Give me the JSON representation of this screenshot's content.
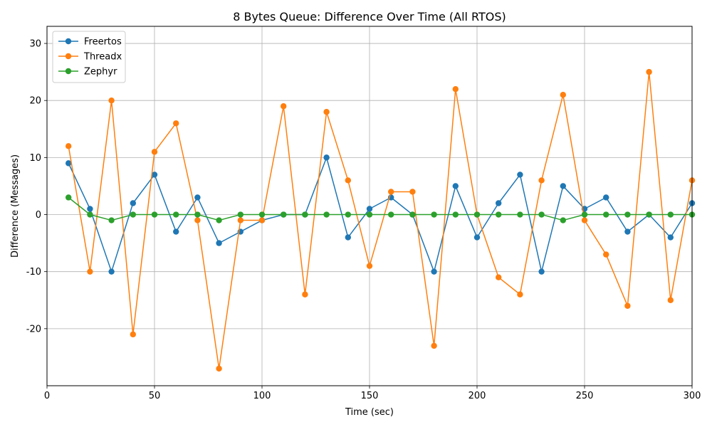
{
  "chart_data": {
    "type": "line",
    "title": "8 Bytes Queue: Difference Over Time (All RTOS)",
    "xlabel": "Time (sec)",
    "ylabel": "Difference (Messages)",
    "xlim": [
      0,
      300
    ],
    "ylim": [
      -30,
      33
    ],
    "xticks": [
      0,
      50,
      100,
      150,
      200,
      250,
      300
    ],
    "yticks": [
      -20,
      -10,
      0,
      10,
      20,
      30
    ],
    "grid": true,
    "legend_position": "top-left",
    "x": [
      10,
      20,
      30,
      40,
      50,
      60,
      70,
      80,
      90,
      100,
      110,
      120,
      130,
      140,
      150,
      160,
      170,
      180,
      190,
      200,
      210,
      220,
      230,
      240,
      250,
      260,
      270,
      280,
      290,
      300
    ],
    "series": [
      {
        "name": "Freertos",
        "color": "#1f77b4",
        "values": [
          9,
          1,
          -10,
          2,
          7,
          -3,
          3,
          -5,
          -3,
          -1,
          0,
          0,
          10,
          -4,
          1,
          3,
          0,
          -10,
          5,
          -4,
          2,
          7,
          -10,
          5,
          1,
          3,
          -3,
          0,
          -4,
          2
        ]
      },
      {
        "name": "Threadx",
        "color": "#ff7f0e",
        "values": [
          12,
          -10,
          20,
          -21,
          11,
          16,
          -1,
          -27,
          -1,
          -1,
          19,
          -14,
          18,
          6,
          -9,
          4,
          4,
          -23,
          22,
          0,
          -11,
          -14,
          6,
          21,
          -1,
          -7,
          -16,
          25,
          -15,
          6
        ]
      },
      {
        "name": "Zephyr",
        "color": "#2ca02c",
        "values": [
          3,
          0,
          -1,
          0,
          0,
          0,
          0,
          -1,
          0,
          0,
          0,
          0,
          0,
          0,
          0,
          0,
          0,
          0,
          0,
          0,
          0,
          0,
          0,
          -1,
          0,
          0,
          0,
          0,
          0,
          0
        ]
      }
    ]
  }
}
